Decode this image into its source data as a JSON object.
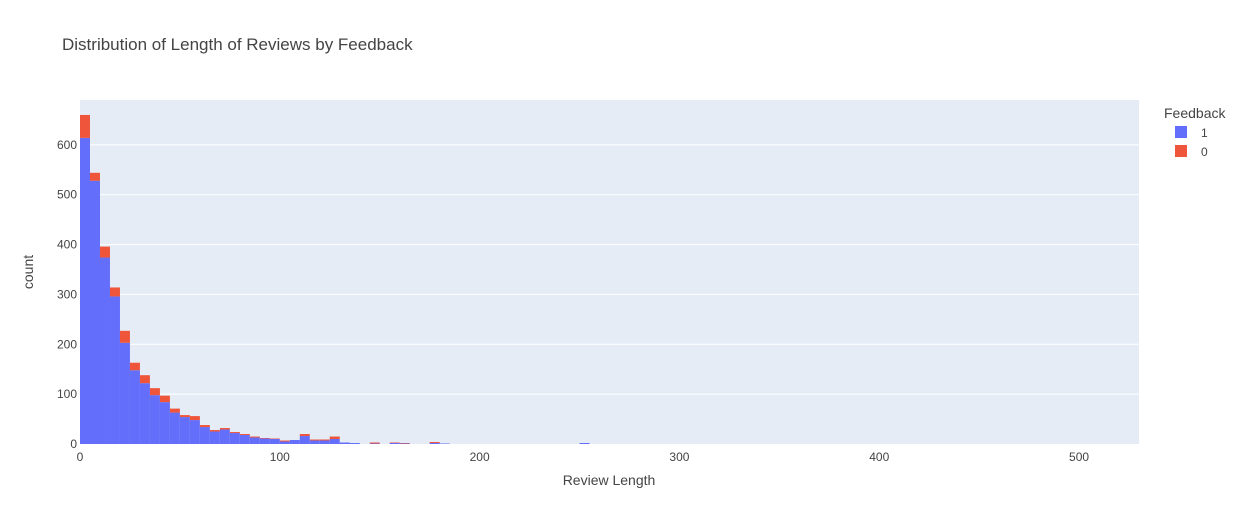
{
  "chart_data": {
    "type": "bar",
    "barmode": "stack",
    "title": "Distribution of Length of Reviews by Feedback",
    "xlabel": "Review Length",
    "ylabel": "count",
    "xlim": [
      0,
      530
    ],
    "ylim": [
      0,
      690
    ],
    "xticks": [
      0,
      100,
      200,
      300,
      400,
      500
    ],
    "yticks": [
      0,
      100,
      200,
      300,
      400,
      500,
      600
    ],
    "bin_width": 5,
    "grid": true,
    "legend": {
      "title": "Feedback",
      "position": "top-right"
    },
    "colors": {
      "plot_bg": "#e5ecf6",
      "grid": "#ffffff",
      "text": "#444444",
      "title": "#444444"
    },
    "series": [
      {
        "name": "1",
        "color": "#636efa",
        "x": [
          0,
          5,
          10,
          15,
          20,
          25,
          30,
          35,
          40,
          45,
          50,
          55,
          60,
          65,
          70,
          75,
          80,
          85,
          90,
          95,
          100,
          105,
          110,
          115,
          120,
          125,
          130,
          135,
          145,
          155,
          160,
          175,
          180,
          250
        ],
        "values": [
          614,
          528,
          374,
          296,
          203,
          148,
          122,
          98,
          84,
          63,
          54,
          48,
          34,
          25,
          29,
          22,
          18,
          13,
          11,
          10,
          5,
          8,
          16,
          7,
          7,
          10,
          3,
          2,
          1,
          2,
          1,
          2,
          1,
          2
        ]
      },
      {
        "name": "0",
        "color": "#ef553b",
        "x": [
          0,
          5,
          10,
          15,
          20,
          25,
          30,
          35,
          40,
          45,
          50,
          55,
          60,
          65,
          70,
          75,
          80,
          85,
          90,
          95,
          100,
          105,
          110,
          115,
          120,
          125,
          130,
          135,
          145,
          155,
          160,
          175,
          180,
          250
        ],
        "values": [
          46,
          16,
          22,
          18,
          24,
          15,
          16,
          14,
          13,
          8,
          4,
          8,
          4,
          3,
          3,
          2,
          2,
          2,
          1,
          1,
          2,
          0,
          4,
          2,
          2,
          5,
          0,
          0,
          2,
          1,
          1,
          2,
          0,
          0
        ]
      }
    ]
  }
}
